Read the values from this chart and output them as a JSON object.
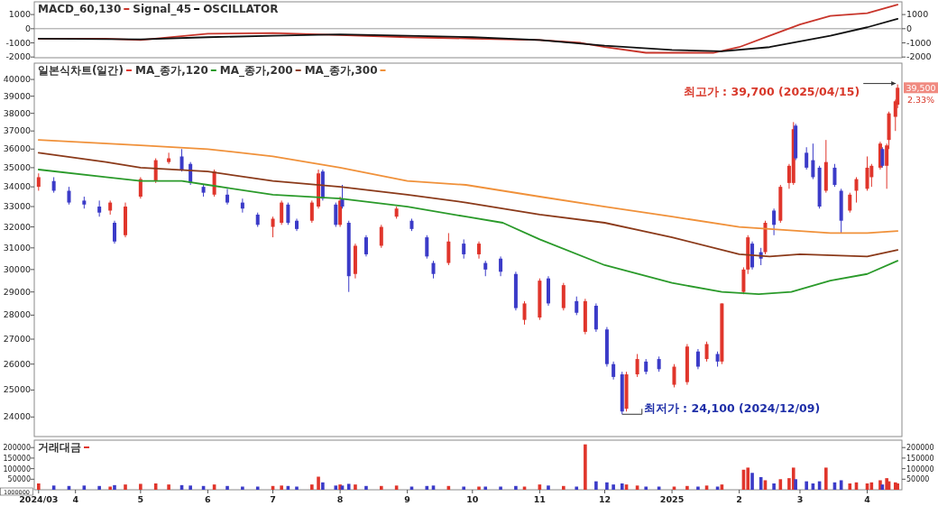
{
  "chart_data": [
    {
      "type": "line",
      "xlim": [
        "2024-03-13",
        "2025-04-17"
      ],
      "ylim": [
        -2050,
        1900
      ],
      "yticks": [
        -2000,
        -1000,
        0,
        1000
      ],
      "y2lim": [
        -2050,
        1900
      ],
      "y2ticks": [
        -2000,
        -1000,
        0,
        1000
      ],
      "tick_labels": "y",
      "legend": "top left",
      "annotations": [
        "OSCILLATOR"
      ],
      "ref_lines": [
        {
          "axis": "y",
          "value": 0,
          "color": "#9a9a9a"
        }
      ],
      "series": [
        {
          "name": "MACD_60,130",
          "color": "#c8352b",
          "x": [
            "2024-03-15",
            "2024-04-15",
            "2024-05-01",
            "2024-06-01",
            "2024-07-01",
            "2024-08-01",
            "2024-09-01",
            "2024-10-01",
            "2024-11-01",
            "2024-11-20",
            "2024-12-01",
            "2024-12-20",
            "2025-01-20",
            "2025-02-01",
            "2025-02-15",
            "2025-03-01",
            "2025-03-15",
            "2025-04-01",
            "2025-04-15"
          ],
          "values": [
            -700,
            -700,
            -800,
            -350,
            -300,
            -450,
            -600,
            -700,
            -800,
            -1000,
            -1300,
            -1700,
            -1700,
            -1300,
            -500,
            300,
            900,
            1100,
            1700
          ]
        },
        {
          "name": "Signal_45",
          "color": "#111111",
          "x": [
            "2024-03-15",
            "2024-05-01",
            "2024-06-01",
            "2024-07-01",
            "2024-08-01",
            "2024-09-01",
            "2024-10-01",
            "2024-11-01",
            "2024-12-01",
            "2025-01-01",
            "2025-01-24",
            "2025-02-15",
            "2025-03-01",
            "2025-03-15",
            "2025-04-01",
            "2025-04-15"
          ],
          "values": [
            -700,
            -750,
            -600,
            -500,
            -400,
            -500,
            -600,
            -800,
            -1200,
            -1500,
            -1600,
            -1300,
            -900,
            -500,
            100,
            700
          ]
        }
      ]
    },
    {
      "type": "candlestick",
      "xlim": [
        "2024-03-13",
        "2025-04-17"
      ],
      "ylim": [
        23300,
        41000
      ],
      "yticks": [
        24000,
        25000,
        26000,
        27000,
        28000,
        29000,
        30000,
        31000,
        32000,
        33000,
        34000,
        35000,
        36000,
        37000,
        38000,
        39000,
        40000
      ],
      "log": true,
      "tick_labels": "y",
      "legend": "top left",
      "annotations": [
        {
          "text": "최고가 : 39,700 (2025/04/15)",
          "x": "2025-04-15",
          "y": 39700
        },
        {
          "text": "최저가 : 24,100 (2024/12/09)",
          "x": "2024-12-09",
          "y": 24100
        },
        {
          "text": "39,500",
          "y": 39500
        },
        "2.33%"
      ],
      "series": [
        {
          "name": "일본식차트(일간)",
          "color": "#e0352b",
          "x": [
            "2024-03-15",
            "2024-03-22",
            "2024-03-29",
            "2024-04-05",
            "2024-04-12",
            "2024-04-17",
            "2024-04-19",
            "2024-04-24",
            "2024-05-01",
            "2024-05-08",
            "2024-05-14",
            "2024-05-20",
            "2024-05-24",
            "2024-05-30",
            "2024-06-04",
            "2024-06-10",
            "2024-06-17",
            "2024-06-24",
            "2024-07-01",
            "2024-07-05",
            "2024-07-08",
            "2024-07-12",
            "2024-07-19",
            "2024-07-22",
            "2024-07-24",
            "2024-07-30",
            "2024-08-01",
            "2024-08-02",
            "2024-08-05",
            "2024-08-08",
            "2024-08-13",
            "2024-08-20",
            "2024-08-27",
            "2024-09-03",
            "2024-09-10",
            "2024-09-13",
            "2024-09-20",
            "2024-09-27",
            "2024-10-04",
            "2024-10-07",
            "2024-10-14",
            "2024-10-21",
            "2024-10-25",
            "2024-11-01",
            "2024-11-05",
            "2024-11-12",
            "2024-11-18",
            "2024-11-22",
            "2024-11-27",
            "2024-12-02",
            "2024-12-05",
            "2024-12-09",
            "2024-12-11",
            "2024-12-16",
            "2024-12-20",
            "2024-12-26",
            "2025-01-02",
            "2025-01-08",
            "2025-01-13",
            "2025-01-17",
            "2025-01-22",
            "2025-01-24",
            "2025-02-03",
            "2025-02-05",
            "2025-02-07",
            "2025-02-11",
            "2025-02-13",
            "2025-02-17",
            "2025-02-20",
            "2025-02-24",
            "2025-02-26",
            "2025-02-27",
            "2025-03-04",
            "2025-03-07",
            "2025-03-10",
            "2025-03-13",
            "2025-03-17",
            "2025-03-20",
            "2025-03-24",
            "2025-03-27",
            "2025-04-01",
            "2025-04-03",
            "2025-04-07",
            "2025-04-08",
            "2025-04-10",
            "2025-04-11",
            "2025-04-14",
            "2025-04-15"
          ],
          "ohlc": [
            [
              34000,
              34700,
              33800,
              34500
            ],
            [
              34300,
              34500,
              33700,
              33800
            ],
            [
              33800,
              34000,
              33100,
              33200
            ],
            [
              33300,
              33500,
              32900,
              33100
            ],
            [
              33000,
              33300,
              32500,
              32700
            ],
            [
              32800,
              33300,
              32600,
              33200
            ],
            [
              32200,
              32300,
              31200,
              31300
            ],
            [
              31600,
              33200,
              31500,
              33000
            ],
            [
              33500,
              34500,
              33400,
              34400
            ],
            [
              34300,
              35500,
              34200,
              35400
            ],
            [
              35300,
              35800,
              35200,
              35500
            ],
            [
              35600,
              36000,
              34800,
              34900
            ],
            [
              35200,
              35300,
              34100,
              34200
            ],
            [
              34000,
              34100,
              33500,
              33700
            ],
            [
              33600,
              34900,
              33500,
              34800
            ],
            [
              33600,
              33900,
              33100,
              33200
            ],
            [
              33200,
              33400,
              32700,
              32900
            ],
            [
              32600,
              32700,
              32000,
              32100
            ],
            [
              32000,
              32500,
              31500,
              32400
            ],
            [
              32200,
              33300,
              32100,
              33200
            ],
            [
              33100,
              33200,
              32100,
              32200
            ],
            [
              32300,
              32400,
              31800,
              31900
            ],
            [
              32300,
              33300,
              32200,
              33200
            ],
            [
              33000,
              34900,
              32900,
              34700
            ],
            [
              34800,
              34900,
              33300,
              33400
            ],
            [
              33100,
              33200,
              32000,
              32100
            ],
            [
              32100,
              33500,
              32000,
              33300
            ],
            [
              33400,
              34100,
              32900,
              33000
            ],
            [
              32200,
              32300,
              29000,
              29700
            ],
            [
              29800,
              31200,
              29600,
              31100
            ],
            [
              31500,
              31600,
              30600,
              30700
            ],
            [
              31100,
              32100,
              31000,
              32000
            ],
            [
              32500,
              33000,
              32400,
              32900
            ],
            [
              32300,
              32400,
              31800,
              31900
            ],
            [
              31500,
              31600,
              30500,
              30600
            ],
            [
              30300,
              30400,
              29600,
              29800
            ],
            [
              30300,
              31700,
              30200,
              31300
            ],
            [
              31200,
              31400,
              30500,
              30700
            ],
            [
              30700,
              31300,
              30500,
              31200
            ],
            [
              30300,
              30400,
              29700,
              30000
            ],
            [
              30500,
              30600,
              29700,
              29900
            ],
            [
              29800,
              29900,
              28200,
              28300
            ],
            [
              27800,
              28600,
              27600,
              28500
            ],
            [
              27900,
              29600,
              27800,
              29500
            ],
            [
              29600,
              29700,
              28400,
              28500
            ],
            [
              28300,
              29400,
              28200,
              29300
            ],
            [
              28600,
              28800,
              28000,
              28100
            ],
            [
              27300,
              28700,
              27200,
              28600
            ],
            [
              28400,
              28500,
              27300,
              27400
            ],
            [
              27400,
              27500,
              25900,
              26000
            ],
            [
              26000,
              26100,
              25400,
              25500
            ],
            [
              25600,
              25700,
              24100,
              24200
            ],
            [
              24300,
              25700,
              24200,
              25600
            ],
            [
              25600,
              26400,
              25500,
              26200
            ],
            [
              26100,
              26200,
              25600,
              25700
            ],
            [
              26200,
              26300,
              25700,
              25800
            ],
            [
              25200,
              26000,
              25100,
              25900
            ],
            [
              25300,
              26800,
              25200,
              26700
            ],
            [
              26500,
              26600,
              25800,
              25900
            ],
            [
              26200,
              26900,
              26100,
              26800
            ],
            [
              26400,
              26500,
              25900,
              26100
            ],
            [
              26100,
              28500,
              26000,
              28500
            ],
            [
              29000,
              30100,
              28900,
              30000
            ],
            [
              30000,
              31600,
              29800,
              31500
            ],
            [
              31200,
              31300,
              30000,
              30100
            ],
            [
              30800,
              31000,
              30200,
              30500
            ],
            [
              30800,
              32300,
              30700,
              32200
            ],
            [
              32800,
              32900,
              31600,
              32100
            ],
            [
              32300,
              34100,
              32200,
              34000
            ],
            [
              34200,
              35200,
              33900,
              35100
            ],
            [
              34200,
              37500,
              34100,
              37100
            ],
            [
              37300,
              37400,
              35400,
              35500
            ],
            [
              35800,
              36100,
              34900,
              35000
            ],
            [
              35400,
              36300,
              34400,
              34500
            ],
            [
              35000,
              35100,
              32900,
              33000
            ],
            [
              33800,
              36500,
              33700,
              35300
            ],
            [
              35000,
              35200,
              34000,
              34100
            ],
            [
              33800,
              33900,
              31700,
              32300
            ],
            [
              32800,
              33700,
              32700,
              33600
            ],
            [
              33800,
              34500,
              33200,
              34400
            ],
            [
              33900,
              35600,
              33800,
              35000
            ],
            [
              34500,
              35200,
              34000,
              35100
            ],
            [
              35000,
              36400,
              34900,
              36300
            ],
            [
              36000,
              36100,
              35000,
              35100
            ],
            [
              35100,
              36300,
              33900,
              36200
            ],
            [
              36500,
              38100,
              36000,
              38000
            ],
            [
              37800,
              38800,
              37000,
              38700
            ],
            [
              38500,
              39700,
              38300,
              39500
            ]
          ],
          "colors": [
            "#e0352b",
            "#3b3bc8",
            "#3b3bc8",
            "#3b3bc8",
            "#3b3bc8",
            "#e0352b",
            "#3b3bc8",
            "#e0352b",
            "#e0352b",
            "#e0352b",
            "#e0352b",
            "#3b3bc8",
            "#3b3bc8",
            "#3b3bc8",
            "#e0352b",
            "#3b3bc8",
            "#3b3bc8",
            "#3b3bc8",
            "#e0352b",
            "#e0352b",
            "#3b3bc8",
            "#3b3bc8",
            "#e0352b",
            "#e0352b",
            "#3b3bc8",
            "#3b3bc8",
            "#e0352b",
            "#3b3bc8",
            "#3b3bc8",
            "#e0352b",
            "#3b3bc8",
            "#e0352b",
            "#e0352b",
            "#3b3bc8",
            "#3b3bc8",
            "#3b3bc8",
            "#e0352b",
            "#3b3bc8",
            "#e0352b",
            "#3b3bc8",
            "#3b3bc8",
            "#3b3bc8",
            "#e0352b",
            "#e0352b",
            "#3b3bc8",
            "#e0352b",
            "#3b3bc8",
            "#e0352b",
            "#3b3bc8",
            "#3b3bc8",
            "#3b3bc8",
            "#3b3bc8",
            "#e0352b",
            "#e0352b",
            "#3b3bc8",
            "#3b3bc8",
            "#e0352b",
            "#e0352b",
            "#3b3bc8",
            "#e0352b",
            "#3b3bc8",
            "#e0352b",
            "#e0352b",
            "#e0352b",
            "#3b3bc8",
            "#3b3bc8",
            "#e0352b",
            "#3b3bc8",
            "#e0352b",
            "#e0352b",
            "#e0352b",
            "#3b3bc8",
            "#3b3bc8",
            "#3b3bc8",
            "#3b3bc8",
            "#e0352b",
            "#3b3bc8",
            "#3b3bc8",
            "#e0352b",
            "#e0352b",
            "#e0352b",
            "#e0352b",
            "#e0352b",
            "#3b3bc8",
            "#e0352b",
            "#e0352b",
            "#e0352b",
            "#e0352b"
          ]
        },
        {
          "type": "line",
          "name": "MA_종가,120",
          "color": "#2a9a2a",
          "x": [
            "2024-03-15",
            "2024-04-15",
            "2024-05-01",
            "2024-05-20",
            "2024-06-01",
            "2024-07-01",
            "2024-08-01",
            "2024-09-01",
            "2024-09-28",
            "2024-10-15",
            "2024-11-01",
            "2024-12-01",
            "2025-01-01",
            "2025-01-24",
            "2025-02-10",
            "2025-02-25",
            "2025-03-15",
            "2025-04-01",
            "2025-04-15"
          ],
          "values": [
            34900,
            34500,
            34300,
            34300,
            34100,
            33600,
            33400,
            33000,
            32500,
            32200,
            31400,
            30200,
            29400,
            29000,
            28900,
            29000,
            29500,
            29800,
            30400
          ]
        },
        {
          "type": "line",
          "name": "MA_종가,200",
          "color": "#8b3a1a",
          "x": [
            "2024-03-15",
            "2024-04-15",
            "2024-05-01",
            "2024-06-01",
            "2024-07-01",
            "2024-08-01",
            "2024-09-01",
            "2024-09-28",
            "2024-11-01",
            "2024-12-01",
            "2025-01-01",
            "2025-02-01",
            "2025-02-15",
            "2025-03-01",
            "2025-04-01",
            "2025-04-15"
          ],
          "values": [
            35800,
            35300,
            35000,
            34800,
            34300,
            34000,
            33600,
            33200,
            32600,
            32200,
            31500,
            30700,
            30600,
            30700,
            30600,
            30900
          ]
        },
        {
          "type": "line",
          "name": "MA_종가,300",
          "color": "#f0913a",
          "x": [
            "2024-03-15",
            "2024-05-01",
            "2024-06-01",
            "2024-07-01",
            "2024-08-01",
            "2024-09-01",
            "2024-09-28",
            "2024-11-01",
            "2024-12-01",
            "2025-01-01",
            "2025-02-01",
            "2025-02-15",
            "2025-03-01",
            "2025-03-15",
            "2025-04-01",
            "2025-04-15"
          ],
          "values": [
            36500,
            36200,
            36000,
            35600,
            35000,
            34300,
            34100,
            33500,
            33000,
            32500,
            32000,
            31900,
            31800,
            31700,
            31700,
            31800
          ]
        }
      ]
    },
    {
      "type": "bar",
      "xlim": [
        "2024-03-13",
        "2025-04-17"
      ],
      "ylim": [
        0,
        235000
      ],
      "yticks": [
        50000,
        100000,
        150000,
        200000
      ],
      "y2lim": [
        0,
        235000
      ],
      "y2ticks": [
        50000,
        100000,
        150000,
        200000
      ],
      "legend": "top left",
      "annotations": [
        "1000000"
      ],
      "xticks": [
        {
          "value": "2024-03-15",
          "label": "2024/03"
        },
        {
          "value": "2024-04-01",
          "label": "4"
        },
        {
          "value": "2024-05-01",
          "label": "5"
        },
        {
          "value": "2024-06-01",
          "label": "6"
        },
        {
          "value": "2024-07-01",
          "label": "7"
        },
        {
          "value": "2024-08-01",
          "label": "8"
        },
        {
          "value": "2024-09-01",
          "label": "9"
        },
        {
          "value": "2024-10-01",
          "label": "10"
        },
        {
          "value": "2024-11-01",
          "label": "11"
        },
        {
          "value": "2024-12-01",
          "label": "12"
        },
        {
          "value": "2025-01-01",
          "label": "2025"
        },
        {
          "value": "2025-02-01",
          "label": "2"
        },
        {
          "value": "2025-03-01",
          "label": "3"
        },
        {
          "value": "2025-04-01",
          "label": "4"
        }
      ],
      "series": [
        {
          "name": "거래대금",
          "color": "#e0352b",
          "x": [
            "2024-03-15",
            "2024-03-22",
            "2024-03-29",
            "2024-04-05",
            "2024-04-12",
            "2024-04-17",
            "2024-04-19",
            "2024-04-24",
            "2024-05-01",
            "2024-05-08",
            "2024-05-14",
            "2024-05-20",
            "2024-05-24",
            "2024-05-30",
            "2024-06-04",
            "2024-06-10",
            "2024-06-17",
            "2024-06-24",
            "2024-07-01",
            "2024-07-05",
            "2024-07-08",
            "2024-07-12",
            "2024-07-19",
            "2024-07-22",
            "2024-07-24",
            "2024-07-30",
            "2024-08-01",
            "2024-08-02",
            "2024-08-05",
            "2024-08-08",
            "2024-08-13",
            "2024-08-20",
            "2024-08-27",
            "2024-09-03",
            "2024-09-10",
            "2024-09-13",
            "2024-09-20",
            "2024-09-27",
            "2024-10-04",
            "2024-10-07",
            "2024-10-14",
            "2024-10-21",
            "2024-10-25",
            "2024-11-01",
            "2024-11-05",
            "2024-11-12",
            "2024-11-18",
            "2024-11-22",
            "2024-11-27",
            "2024-12-02",
            "2024-12-05",
            "2024-12-09",
            "2024-12-11",
            "2024-12-16",
            "2024-12-20",
            "2024-12-26",
            "2025-01-02",
            "2025-01-08",
            "2025-01-13",
            "2025-01-17",
            "2025-01-22",
            "2025-01-24",
            "2025-02-03",
            "2025-02-05",
            "2025-02-07",
            "2025-02-11",
            "2025-02-13",
            "2025-02-17",
            "2025-02-20",
            "2025-02-24",
            "2025-02-26",
            "2025-02-27",
            "2025-03-04",
            "2025-03-07",
            "2025-03-10",
            "2025-03-13",
            "2025-03-17",
            "2025-03-20",
            "2025-03-24",
            "2025-03-27",
            "2025-04-01",
            "2025-04-03",
            "2025-04-07",
            "2025-04-08",
            "2025-04-10",
            "2025-04-11",
            "2025-04-14",
            "2025-04-15"
          ],
          "values": [
            30000,
            20000,
            18000,
            20000,
            18000,
            15000,
            22000,
            25000,
            28000,
            30000,
            25000,
            22000,
            20000,
            18000,
            25000,
            18000,
            15000,
            15000,
            18000,
            20000,
            18000,
            15000,
            25000,
            62000,
            35000,
            20000,
            25000,
            20000,
            28000,
            25000,
            18000,
            18000,
            20000,
            15000,
            18000,
            20000,
            18000,
            15000,
            15000,
            15000,
            15000,
            18000,
            15000,
            25000,
            20000,
            18000,
            15000,
            215000,
            40000,
            35000,
            25000,
            30000,
            25000,
            20000,
            15000,
            15000,
            15000,
            18000,
            15000,
            20000,
            15000,
            25000,
            95000,
            105000,
            80000,
            60000,
            45000,
            30000,
            50000,
            55000,
            105000,
            50000,
            40000,
            30000,
            40000,
            105000,
            35000,
            45000,
            30000,
            35000,
            30000,
            35000,
            45000,
            25000,
            55000,
            40000,
            35000,
            30000
          ],
          "colors": [
            "#e0352b",
            "#3b3bc8",
            "#3b3bc8",
            "#3b3bc8",
            "#3b3bc8",
            "#e0352b",
            "#3b3bc8",
            "#e0352b",
            "#e0352b",
            "#e0352b",
            "#e0352b",
            "#3b3bc8",
            "#3b3bc8",
            "#3b3bc8",
            "#e0352b",
            "#3b3bc8",
            "#3b3bc8",
            "#3b3bc8",
            "#e0352b",
            "#e0352b",
            "#3b3bc8",
            "#3b3bc8",
            "#e0352b",
            "#e0352b",
            "#3b3bc8",
            "#3b3bc8",
            "#e0352b",
            "#3b3bc8",
            "#3b3bc8",
            "#e0352b",
            "#3b3bc8",
            "#e0352b",
            "#e0352b",
            "#3b3bc8",
            "#3b3bc8",
            "#3b3bc8",
            "#e0352b",
            "#3b3bc8",
            "#e0352b",
            "#3b3bc8",
            "#3b3bc8",
            "#3b3bc8",
            "#e0352b",
            "#e0352b",
            "#3b3bc8",
            "#e0352b",
            "#3b3bc8",
            "#e0352b",
            "#3b3bc8",
            "#3b3bc8",
            "#3b3bc8",
            "#3b3bc8",
            "#e0352b",
            "#e0352b",
            "#3b3bc8",
            "#3b3bc8",
            "#e0352b",
            "#e0352b",
            "#3b3bc8",
            "#e0352b",
            "#3b3bc8",
            "#e0352b",
            "#e0352b",
            "#e0352b",
            "#3b3bc8",
            "#3b3bc8",
            "#e0352b",
            "#3b3bc8",
            "#e0352b",
            "#e0352b",
            "#e0352b",
            "#3b3bc8",
            "#3b3bc8",
            "#3b3bc8",
            "#3b3bc8",
            "#e0352b",
            "#3b3bc8",
            "#3b3bc8",
            "#e0352b",
            "#e0352b",
            "#e0352b",
            "#e0352b",
            "#e0352b",
            "#3b3bc8",
            "#e0352b",
            "#e0352b",
            "#e0352b",
            "#e0352b"
          ]
        }
      ]
    }
  ]
}
